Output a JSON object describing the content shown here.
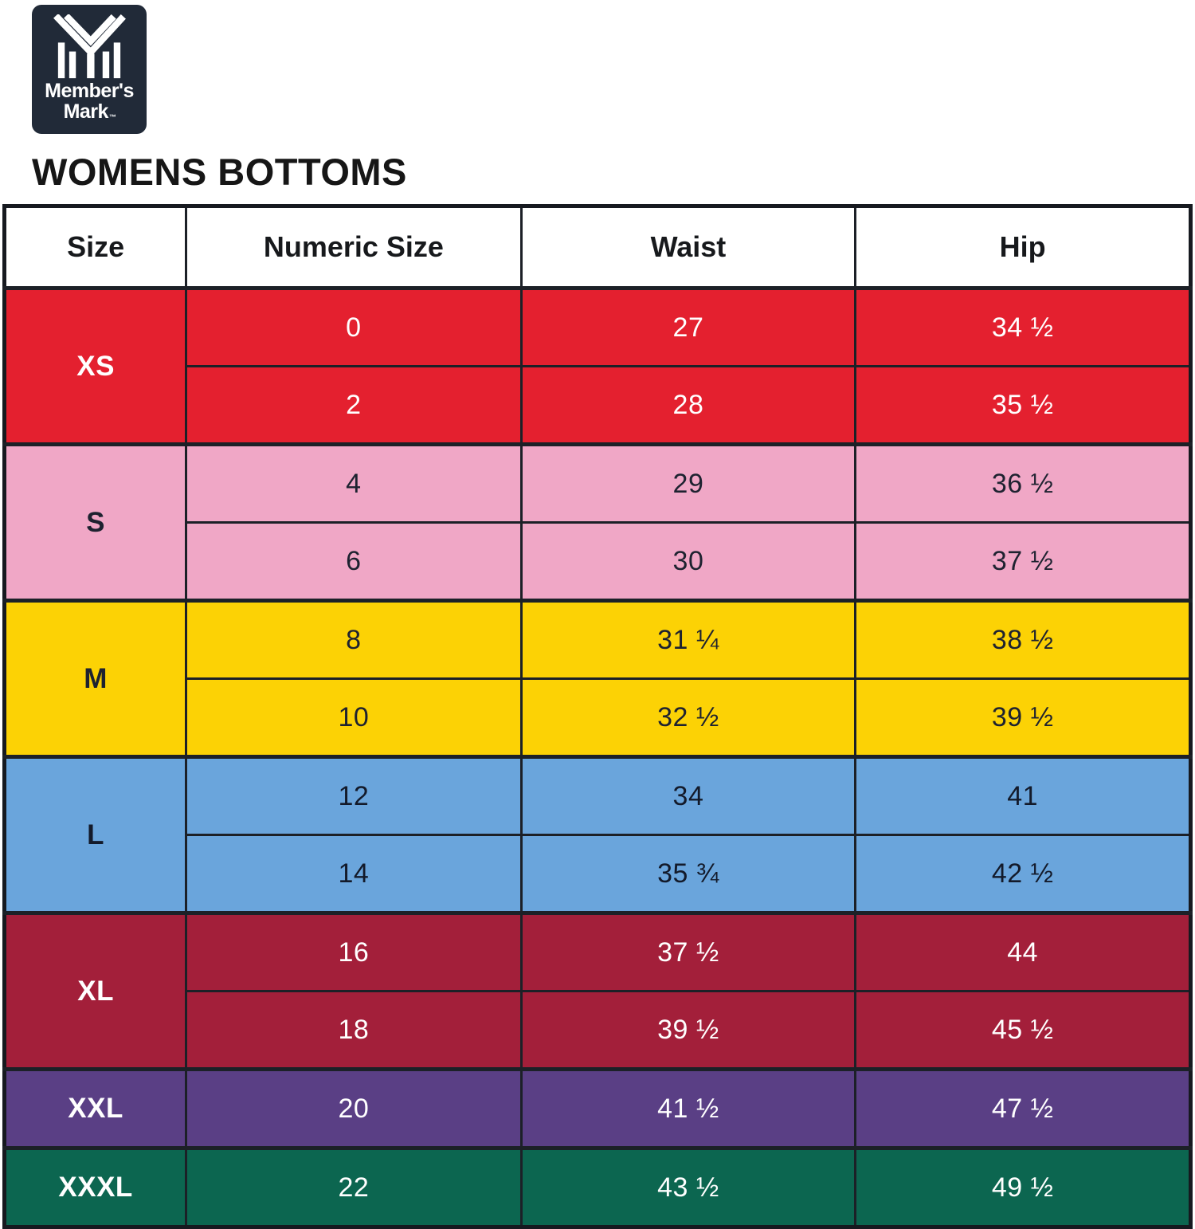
{
  "brand": {
    "line1": "Member's",
    "line2": "Mark",
    "tm": "™"
  },
  "title": "WOMENS BOTTOMS",
  "colors": {
    "logo_background": "#212a38",
    "grid_line": "#1c2027",
    "header_text": "#17191c"
  },
  "table": {
    "headers": [
      "Size",
      "Numeric Size",
      "Waist",
      "Hip"
    ],
    "groups": [
      {
        "size": "XS",
        "bg": "#e4202f",
        "text": "#ffffff",
        "rows": [
          [
            "0",
            "27",
            "34 ½"
          ],
          [
            "2",
            "28",
            "35 ½"
          ]
        ]
      },
      {
        "size": "S",
        "bg": "#f0a7c6",
        "text": "#1e2230",
        "rows": [
          [
            "4",
            "29",
            "36 ½"
          ],
          [
            "6",
            "30",
            "37 ½"
          ]
        ]
      },
      {
        "size": "M",
        "bg": "#fcd205",
        "text": "#1e2230",
        "rows": [
          [
            "8",
            "31 ¼",
            "38 ½"
          ],
          [
            "10",
            "32 ½",
            "39 ½"
          ]
        ]
      },
      {
        "size": "L",
        "bg": "#6aa5dc",
        "text": "#131a2a",
        "rows": [
          [
            "12",
            "34",
            "41"
          ],
          [
            "14",
            "35 ¾",
            "42 ½"
          ]
        ]
      },
      {
        "size": "XL",
        "bg": "#a31f3a",
        "text": "#ffffff",
        "rows": [
          [
            "16",
            "37 ½",
            "44"
          ],
          [
            "18",
            "39 ½",
            "45 ½"
          ]
        ]
      },
      {
        "size": "XXL",
        "bg": "#5a3f85",
        "text": "#ffffff",
        "rows": [
          [
            "20",
            "41 ½",
            "47 ½"
          ]
        ]
      },
      {
        "size": "XXXL",
        "bg": "#0c6650",
        "text": "#ffffff",
        "rows": [
          [
            "22",
            "43 ½",
            "49 ½"
          ]
        ]
      }
    ]
  },
  "chart_data": {
    "type": "table",
    "title": "WOMENS BOTTOMS",
    "columns": [
      "Size",
      "Numeric Size",
      "Waist",
      "Hip"
    ],
    "rows": [
      [
        "XS",
        "0",
        "27",
        "34 ½"
      ],
      [
        "XS",
        "2",
        "28",
        "35 ½"
      ],
      [
        "S",
        "4",
        "29",
        "36 ½"
      ],
      [
        "S",
        "6",
        "30",
        "37 ½"
      ],
      [
        "M",
        "8",
        "31 ¼",
        "38 ½"
      ],
      [
        "M",
        "10",
        "32 ½",
        "39 ½"
      ],
      [
        "L",
        "12",
        "34",
        "41"
      ],
      [
        "L",
        "14",
        "35 ¾",
        "42 ½"
      ],
      [
        "XL",
        "16",
        "37 ½",
        "44"
      ],
      [
        "XL",
        "18",
        "39 ½",
        "45 ½"
      ],
      [
        "XXL",
        "20",
        "41 ½",
        "47 ½"
      ],
      [
        "XXXL",
        "22",
        "43 ½",
        "49 ½"
      ]
    ],
    "group_colors": {
      "XS": "#e4202f",
      "S": "#f0a7c6",
      "M": "#fcd205",
      "L": "#6aa5dc",
      "XL": "#a31f3a",
      "XXL": "#5a3f85",
      "XXXL": "#0c6650"
    }
  }
}
